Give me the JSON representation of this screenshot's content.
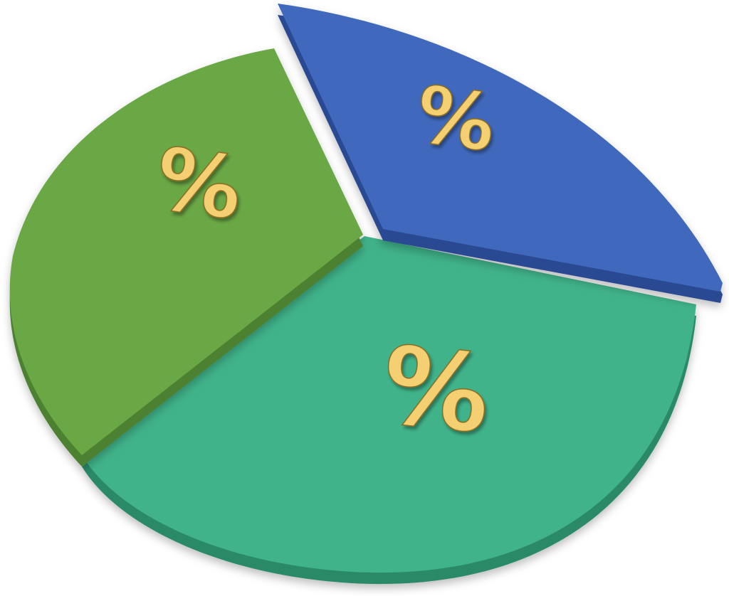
{
  "chart_data": {
    "type": "pie",
    "style": "3d-exploded",
    "title": "",
    "labels": [
      "%",
      "%",
      "%"
    ],
    "values": [
      30,
      25,
      45
    ],
    "colors": [
      "#6aa744",
      "#4169bd",
      "#3fb38a"
    ],
    "side_colors": [
      "#4e8131",
      "#2a4a93",
      "#2c8a67"
    ],
    "label_color": "#f4d072",
    "exploded": [
      false,
      true,
      false
    ],
    "legend": "none"
  }
}
